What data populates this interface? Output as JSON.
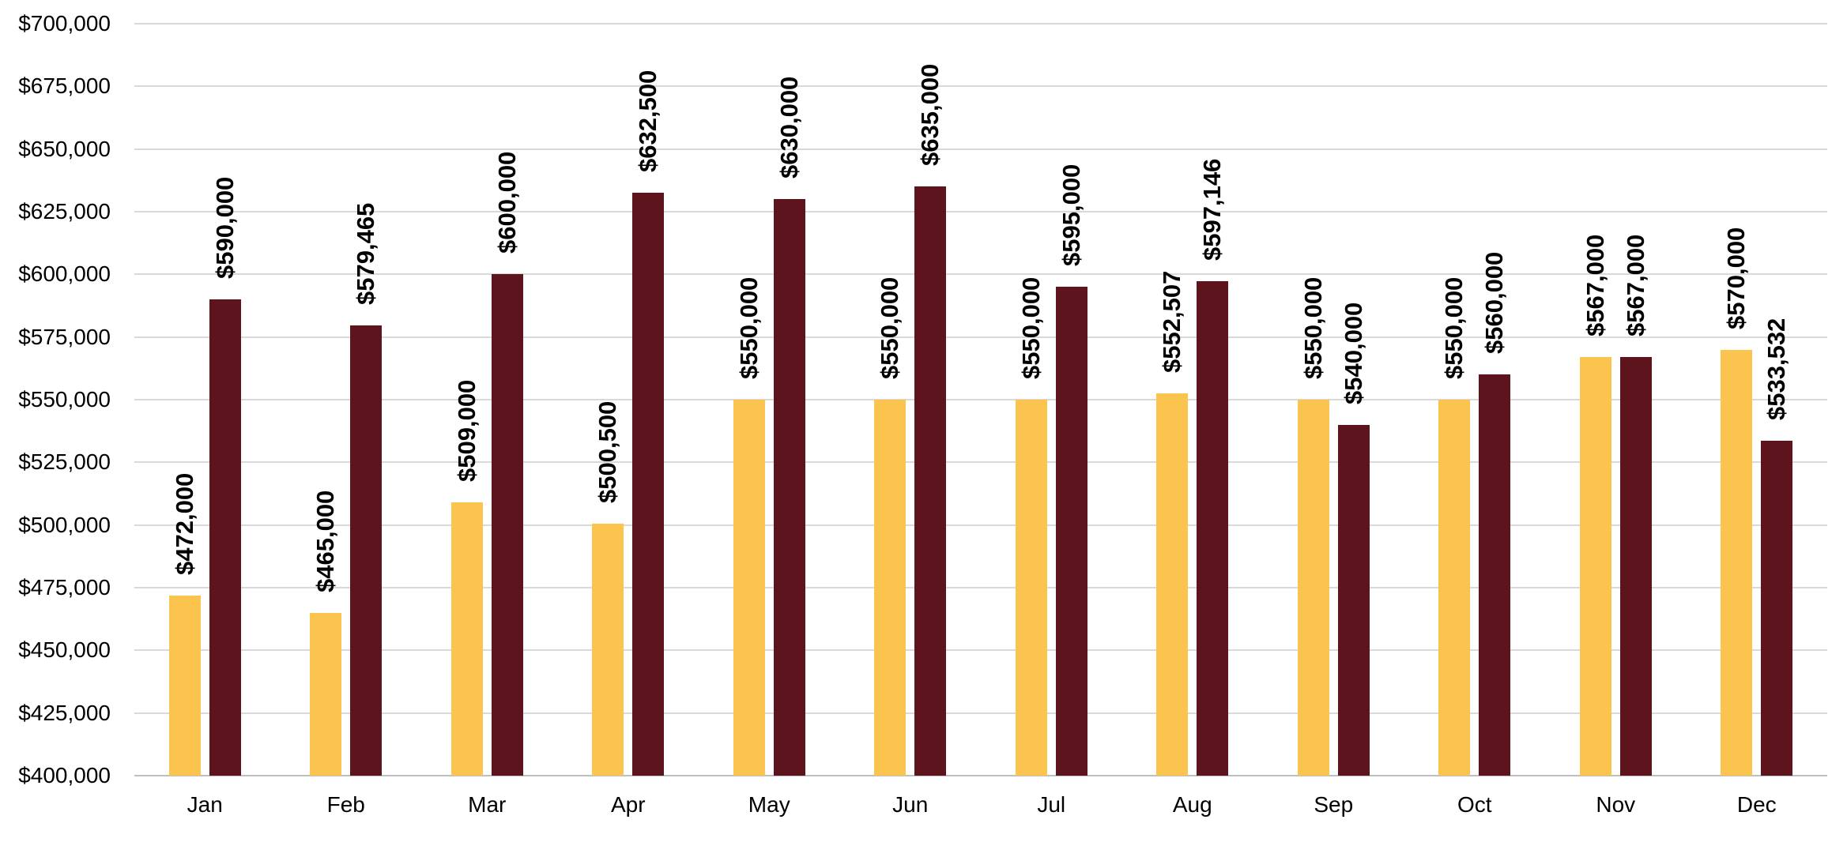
{
  "chart_data": {
    "type": "bar",
    "categories": [
      "Jan",
      "Feb",
      "Mar",
      "Apr",
      "May",
      "Jun",
      "Jul",
      "Aug",
      "Sep",
      "Oct",
      "Nov",
      "Dec"
    ],
    "series": [
      {
        "key": "gold",
        "color": "#FBC44E",
        "values": [
          472000,
          465000,
          509000,
          500500,
          550000,
          550000,
          550000,
          552507,
          550000,
          550000,
          567000,
          570000
        ],
        "labels": [
          "$472,000",
          "$465,000",
          "$509,000",
          "$500,500",
          "$550,000",
          "$550,000",
          "$550,000",
          "$552,507",
          "$550,000",
          "$550,000",
          "$567,000",
          "$570,000"
        ]
      },
      {
        "key": "maroon",
        "color": "#5E141C",
        "values": [
          590000,
          579465,
          600000,
          632500,
          630000,
          635000,
          595000,
          597146,
          540000,
          560000,
          567000,
          533532
        ],
        "labels": [
          "$590,000",
          "$579,465",
          "$600,000",
          "$632,500",
          "$630,000",
          "$635,000",
          "$595,000",
          "$597,146",
          "$540,000",
          "$560,000",
          "$567,000",
          "$533,532"
        ]
      }
    ],
    "ylim": [
      400000,
      700000
    ],
    "ytick_step": 25000,
    "y_ticks": [
      {
        "value": 700000,
        "label": "$700,000"
      },
      {
        "value": 675000,
        "label": "$675,000"
      },
      {
        "value": 650000,
        "label": "$650,000"
      },
      {
        "value": 625000,
        "label": "$625,000"
      },
      {
        "value": 600000,
        "label": "$600,000"
      },
      {
        "value": 575000,
        "label": "$575,000"
      },
      {
        "value": 550000,
        "label": "$550,000"
      },
      {
        "value": 525000,
        "label": "$525,000"
      },
      {
        "value": 500000,
        "label": "$500,000"
      },
      {
        "value": 475000,
        "label": "$475,000"
      },
      {
        "value": 450000,
        "label": "$450,000"
      },
      {
        "value": 425000,
        "label": "$425,000"
      },
      {
        "value": 400000,
        "label": "$400,000"
      }
    ],
    "grid": true,
    "legend": "none",
    "data_label_rotation": -90,
    "colors": {
      "gridline": "#D9D9D9",
      "axis_line": "#BFBFBF",
      "label_text": "#000000",
      "background": "#FFFFFF"
    }
  }
}
